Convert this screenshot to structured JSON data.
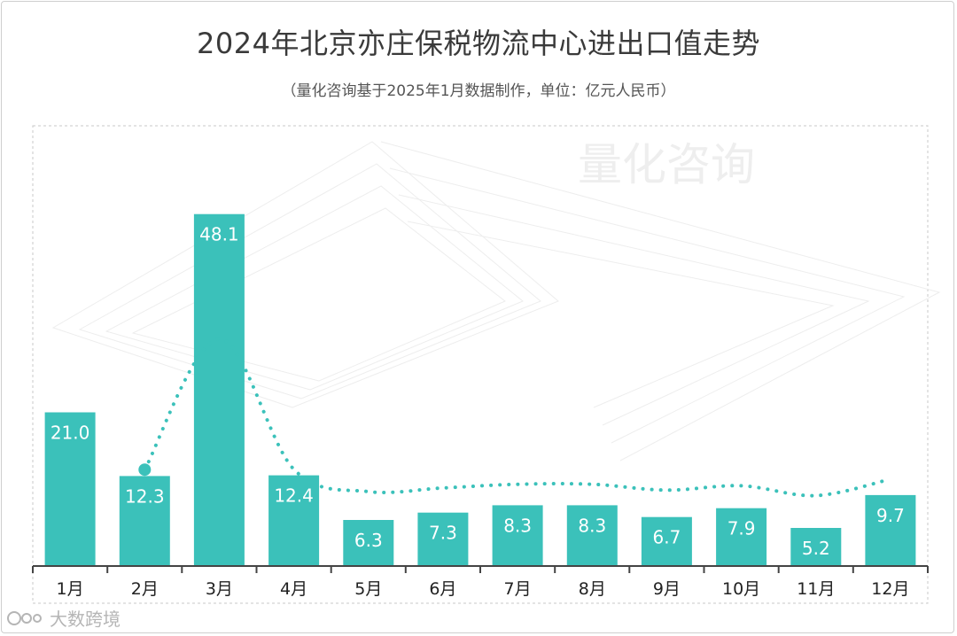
{
  "chart_data": {
    "type": "bar",
    "title": "2024年北京亦庄保税物流中心进出口值走势",
    "subtitle": "（量化咨询基于2025年1月数据制作，单位：亿元人民币）",
    "categories": [
      "1月",
      "2月",
      "3月",
      "4月",
      "5月",
      "6月",
      "7月",
      "8月",
      "9月",
      "10月",
      "11月",
      "12月"
    ],
    "values": [
      21.0,
      12.3,
      48.1,
      12.4,
      6.3,
      7.3,
      8.3,
      8.3,
      6.7,
      7.9,
      5.2,
      9.7
    ],
    "value_labels": [
      "21.0",
      "12.3",
      "48.1",
      "12.4",
      "6.3",
      "7.3",
      "8.3",
      "8.3",
      "6.7",
      "7.9",
      "5.2",
      "9.7"
    ],
    "trend_line": {
      "style": "dotted",
      "start_index": 1,
      "end_index": 11
    },
    "bar_color": "#3bc1ba",
    "axis_color": "#444444",
    "grid": false,
    "legend": "none"
  },
  "watermark": {
    "text": "量化咨询"
  },
  "footer": {
    "logo_text": "大数跨境"
  }
}
